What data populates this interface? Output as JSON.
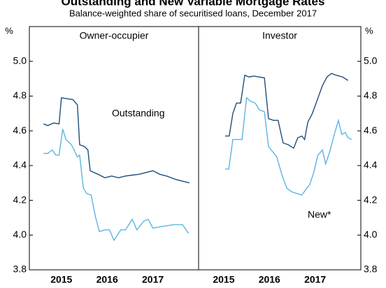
{
  "header": {
    "title": "Outstanding and New Variable Mortgage Rates",
    "subtitle": "Balance-weighted share of securitised loans, December 2017"
  },
  "chart_data": [
    {
      "type": "line",
      "title": "Owner-occupier",
      "y_unit": "%",
      "annotation": "Outstanding",
      "xlim": [
        2014.8,
        2018.5
      ],
      "ylim": [
        3.8,
        5.2
      ],
      "xticks": [
        {
          "value": 2015.5,
          "label": "2015"
        },
        {
          "value": 2016.5,
          "label": "2016"
        },
        {
          "value": 2017.5,
          "label": "2017"
        }
      ],
      "yticks": [
        3.8,
        {
          "value": 4.0,
          "label": "4.0"
        },
        4.2,
        4.4,
        4.6,
        4.8,
        {
          "value": 5.0,
          "label": "5.0"
        }
      ],
      "series": [
        {
          "name": "Outstanding",
          "color": "#1f4e79",
          "x": [
            2015.11,
            2015.2,
            2015.33,
            2015.45,
            2015.5,
            2015.62,
            2015.75,
            2015.85,
            2015.9,
            2016.0,
            2016.08,
            2016.13,
            2016.3,
            2016.45,
            2016.6,
            2016.75,
            2016.9,
            2017.05,
            2017.2,
            2017.35,
            2017.5,
            2017.65,
            2017.8,
            2018.0,
            2018.3
          ],
          "values": [
            4.64,
            4.63,
            4.645,
            4.64,
            4.79,
            4.785,
            4.78,
            4.75,
            4.52,
            4.51,
            4.49,
            4.37,
            4.35,
            4.33,
            4.34,
            4.33,
            4.34,
            4.345,
            4.35,
            4.36,
            4.37,
            4.35,
            4.34,
            4.32,
            4.3
          ]
        },
        {
          "name": "New*",
          "color": "#5bb4e5",
          "x": [
            2015.11,
            2015.2,
            2015.3,
            2015.38,
            2015.45,
            2015.53,
            2015.6,
            2015.72,
            2015.85,
            2015.9,
            2015.98,
            2016.05,
            2016.15,
            2016.25,
            2016.33,
            2016.45,
            2016.55,
            2016.65,
            2016.8,
            2016.9,
            2017.05,
            2017.15,
            2017.3,
            2017.4,
            2017.5,
            2017.7,
            2017.95,
            2018.15,
            2018.28
          ],
          "values": [
            4.47,
            4.47,
            4.49,
            4.46,
            4.46,
            4.61,
            4.55,
            4.52,
            4.45,
            4.46,
            4.27,
            4.24,
            4.23,
            4.1,
            4.02,
            4.03,
            4.03,
            3.97,
            4.03,
            4.03,
            4.09,
            4.03,
            4.08,
            4.09,
            4.04,
            4.05,
            4.06,
            4.06,
            4.01
          ]
        }
      ]
    },
    {
      "type": "line",
      "title": "Investor",
      "y_unit": "%",
      "annotation": "New*",
      "xlim": [
        2014.95,
        2018.5
      ],
      "ylim": [
        3.8,
        5.2
      ],
      "xticks": [
        {
          "value": 2015.5,
          "label": "2015"
        },
        {
          "value": 2016.5,
          "label": "2016"
        },
        {
          "value": 2017.5,
          "label": "2017"
        }
      ],
      "yticks": [
        3.8,
        {
          "value": 4.0,
          "label": "4.0"
        },
        4.2,
        4.4,
        4.6,
        4.8,
        {
          "value": 5.0,
          "label": "5.0"
        }
      ],
      "series": [
        {
          "name": "Outstanding",
          "color": "#1f4e79",
          "x": [
            2015.53,
            2015.62,
            2015.7,
            2015.78,
            2015.87,
            2015.96,
            2016.05,
            2016.16,
            2016.26,
            2016.39,
            2016.48,
            2016.59,
            2016.69,
            2016.8,
            2016.91,
            2017.03,
            2017.12,
            2017.21,
            2017.27,
            2017.34,
            2017.44,
            2017.55,
            2017.66,
            2017.76,
            2017.86,
            2017.96,
            2018.1,
            2018.22
          ],
          "values": [
            4.57,
            4.57,
            4.7,
            4.76,
            4.76,
            4.92,
            4.91,
            4.915,
            4.91,
            4.905,
            4.67,
            4.66,
            4.66,
            4.53,
            4.52,
            4.5,
            4.56,
            4.57,
            4.55,
            4.65,
            4.7,
            4.78,
            4.86,
            4.91,
            4.93,
            4.92,
            4.91,
            4.89
          ]
        },
        {
          "name": "New*",
          "color": "#5bb4e5",
          "x": [
            2015.53,
            2015.61,
            2015.7,
            2015.81,
            2015.9,
            2016.0,
            2016.09,
            2016.19,
            2016.28,
            2016.39,
            2016.48,
            2016.57,
            2016.66,
            2016.77,
            2016.88,
            2016.98,
            2017.09,
            2017.21,
            2017.29,
            2017.38,
            2017.47,
            2017.56,
            2017.66,
            2017.73,
            2017.82,
            2017.92,
            2018.01,
            2018.08,
            2018.16,
            2018.22,
            2018.3
          ],
          "values": [
            4.38,
            4.38,
            4.55,
            4.55,
            4.55,
            4.79,
            4.77,
            4.76,
            4.72,
            4.71,
            4.51,
            4.48,
            4.45,
            4.35,
            4.27,
            4.25,
            4.24,
            4.23,
            4.26,
            4.29,
            4.36,
            4.46,
            4.49,
            4.41,
            4.48,
            4.58,
            4.66,
            4.58,
            4.59,
            4.56,
            4.55
          ]
        }
      ]
    }
  ]
}
